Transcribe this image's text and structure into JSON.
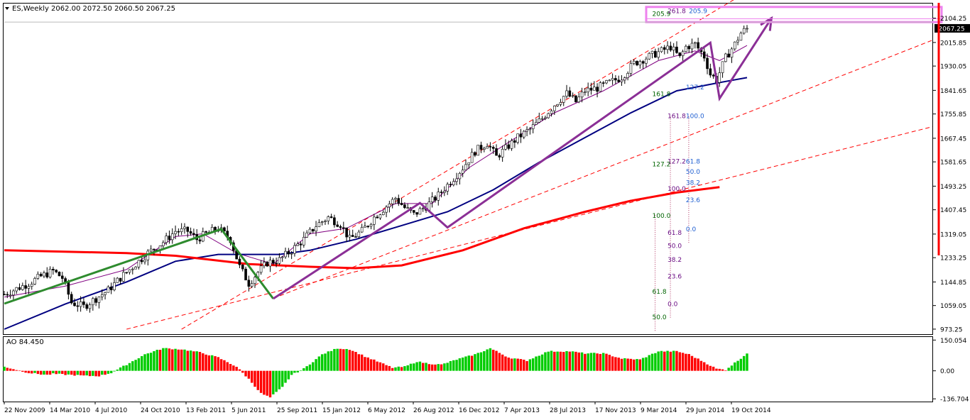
{
  "header": {
    "symbol": "ES,Weekly",
    "ohlc": "2062.00 2072.50 2060.50 2067.25"
  },
  "colors": {
    "background": "#ffffff",
    "grid_line": "#c8c8c8",
    "candle": "#000000",
    "ma_fast": "#800080",
    "ma_mid": "#000080",
    "ma_slow": "#ff0000",
    "trendline": "#ff0000",
    "wave_green": "#2e8b2e",
    "wave_purple": "#8b2f96",
    "target_box": "#ee82ee",
    "fib_green": "#006400",
    "fib_purple": "#6a0d83",
    "fib_blue": "#1f5fd1",
    "ao_up": "#00cc00",
    "ao_down": "#ff0000",
    "price_tag_bg": "#000000",
    "price_tag_text": "#ffffff"
  },
  "chart_data": [
    {
      "type": "candlestick",
      "title": "ES,Weekly",
      "current_price": 2067.25,
      "ylim": [
        955,
        2160
      ],
      "y_ticks": [
        "2104.25",
        "2015.85",
        "1930.05",
        "1841.65",
        "1755.85",
        "1667.45",
        "1581.65",
        "1493.25",
        "1407.45",
        "1319.05",
        "1233.25",
        "1144.85",
        "1059.05",
        "973.25"
      ],
      "y_tick_values": [
        2104.25,
        2015.85,
        1930.05,
        1841.65,
        1755.85,
        1667.45,
        1581.65,
        1493.25,
        1407.45,
        1319.05,
        1233.25,
        1144.85,
        1059.05,
        973.25
      ],
      "x_ticks": [
        "22 Nov 2009",
        "14 Mar 2010",
        "4 Jul 2010",
        "24 Oct 2010",
        "13 Feb 2011",
        "5 Jun 2011",
        "25 Sep 2011",
        "15 Jan 2012",
        "6 May 2012",
        "26 Aug 2012",
        "16 Dec 2012",
        "7 Apr 2013",
        "28 Jul 2013",
        "17 Nov 2013",
        "9 Mar 2014",
        "29 Jun 2014",
        "19 Oct 2014"
      ],
      "price_path": [
        [
          0,
          1100
        ],
        [
          3,
          1115
        ],
        [
          8,
          1140
        ],
        [
          12,
          1165
        ],
        [
          16,
          1185
        ],
        [
          19,
          1160
        ],
        [
          22,
          1070
        ],
        [
          26,
          1055
        ],
        [
          30,
          1085
        ],
        [
          34,
          1115
        ],
        [
          38,
          1160
        ],
        [
          42,
          1200
        ],
        [
          47,
          1250
        ],
        [
          52,
          1290
        ],
        [
          56,
          1330
        ],
        [
          60,
          1330
        ],
        [
          63,
          1300
        ],
        [
          66,
          1320
        ],
        [
          70,
          1340
        ],
        [
          74,
          1300
        ],
        [
          77,
          1200
        ],
        [
          80,
          1140
        ],
        [
          83,
          1180
        ],
        [
          86,
          1215
        ],
        [
          90,
          1225
        ],
        [
          94,
          1260
        ],
        [
          98,
          1300
        ],
        [
          102,
          1350
        ],
        [
          106,
          1380
        ],
        [
          110,
          1355
        ],
        [
          113,
          1300
        ],
        [
          117,
          1330
        ],
        [
          121,
          1380
        ],
        [
          125,
          1420
        ],
        [
          128,
          1450
        ],
        [
          131,
          1415
        ],
        [
          134,
          1390
        ],
        [
          138,
          1420
        ],
        [
          142,
          1460
        ],
        [
          146,
          1510
        ],
        [
          150,
          1560
        ],
        [
          154,
          1620
        ],
        [
          158,
          1650
        ],
        [
          161,
          1600
        ],
        [
          164,
          1630
        ],
        [
          168,
          1670
        ],
        [
          172,
          1700
        ],
        [
          176,
          1740
        ],
        [
          180,
          1790
        ],
        [
          184,
          1830
        ],
        [
          187,
          1800
        ],
        [
          190,
          1840
        ],
        [
          194,
          1850
        ],
        [
          198,
          1870
        ],
        [
          202,
          1890
        ],
        [
          206,
          1940
        ],
        [
          210,
          1960
        ],
        [
          214,
          1980
        ],
        [
          218,
          2000
        ],
        [
          221,
          1960
        ],
        [
          223,
          2000
        ],
        [
          226,
          2010
        ],
        [
          229,
          1965
        ],
        [
          231,
          1900
        ],
        [
          233,
          1880
        ],
        [
          236,
          1960
        ],
        [
          239,
          2010
        ],
        [
          241,
          2050
        ],
        [
          243,
          2067.25
        ]
      ],
      "series": [
        {
          "name": "",
          "kind": "ma_fast",
          "values": [
            [
              0,
              1090
            ],
            [
              20,
              1130
            ],
            [
              40,
              1190
            ],
            [
              56,
              1310
            ],
            [
              65,
              1320
            ],
            [
              76,
              1250
            ],
            [
              88,
              1210
            ],
            [
              100,
              1320
            ],
            [
              112,
              1340
            ],
            [
              128,
              1430
            ],
            [
              140,
              1430
            ],
            [
              152,
              1560
            ],
            [
              166,
              1660
            ],
            [
              180,
              1760
            ],
            [
              196,
              1840
            ],
            [
              214,
              1950
            ],
            [
              226,
              1985
            ],
            [
              234,
              1950
            ],
            [
              243,
              2005
            ]
          ]
        },
        {
          "name": "",
          "kind": "ma_mid",
          "values": [
            [
              0,
              973
            ],
            [
              20,
              1065
            ],
            [
              40,
              1145
            ],
            [
              56,
              1220
            ],
            [
              70,
              1245
            ],
            [
              90,
              1245
            ],
            [
              100,
              1260
            ],
            [
              115,
              1300
            ],
            [
              130,
              1350
            ],
            [
              145,
              1400
            ],
            [
              160,
              1480
            ],
            [
              175,
              1580
            ],
            [
              190,
              1670
            ],
            [
              205,
              1760
            ],
            [
              220,
              1840
            ],
            [
              234,
              1870
            ],
            [
              243,
              1888
            ]
          ]
        },
        {
          "name": "",
          "kind": "ma_slow",
          "values": [
            [
              0,
              1260
            ],
            [
              40,
              1250
            ],
            [
              56,
              1240
            ],
            [
              80,
              1210
            ],
            [
              100,
              1200
            ],
            [
              115,
              1195
            ],
            [
              130,
              1205
            ],
            [
              150,
              1260
            ],
            [
              170,
              1340
            ],
            [
              190,
              1400
            ],
            [
              205,
              1440
            ],
            [
              220,
              1470
            ],
            [
              234,
              1490
            ]
          ]
        }
      ],
      "trendlines": [
        [
          [
            58,
            973
          ],
          [
            243,
            2200
          ]
        ],
        [
          [
            88,
            1085
          ],
          [
            243,
            1760
          ]
        ],
        [
          [
            40,
            973
          ],
          [
            243,
            1540
          ]
        ]
      ],
      "wave_lines": {
        "green": [
          [
            0,
            1066
          ],
          [
            71,
            1337
          ],
          [
            88,
            1084
          ]
        ],
        "purple": [
          [
            88,
            1084
          ],
          [
            136,
            1432
          ],
          [
            145,
            1343
          ],
          [
            231,
            2015
          ],
          [
            234,
            1812
          ],
          [
            251,
            2104
          ]
        ]
      },
      "target_box": {
        "low": 2090,
        "high": 2145
      },
      "fib_labels": [
        {
          "text": "205.9",
          "color": "fib_green",
          "x": 212,
          "price": 2122
        },
        {
          "text": "261.8",
          "color": "fib_purple",
          "x": 217,
          "price": 2133
        },
        {
          "text": "205.9",
          "color": "fib_blue",
          "x": 224,
          "price": 2133
        },
        {
          "text": "161.8",
          "color": "fib_green",
          "x": 212,
          "price": 1831
        },
        {
          "text": "127.2",
          "color": "fib_blue",
          "x": 223,
          "price": 1856
        },
        {
          "text": "161.8",
          "color": "fib_purple",
          "x": 217,
          "price": 1751
        },
        {
          "text": "100.0",
          "color": "fib_blue",
          "x": 223,
          "price": 1751
        },
        {
          "text": "127.2",
          "color": "fib_purple",
          "x": 217,
          "price": 1586
        },
        {
          "text": "127.2",
          "color": "fib_green",
          "x": 212,
          "price": 1576
        },
        {
          "text": "61.8",
          "color": "fib_blue",
          "x": 223,
          "price": 1586
        },
        {
          "text": "50.0",
          "color": "fib_blue",
          "x": 223,
          "price": 1548
        },
        {
          "text": "100.0",
          "color": "fib_purple",
          "x": 217,
          "price": 1487
        },
        {
          "text": "38.2",
          "color": "fib_blue",
          "x": 223,
          "price": 1508
        },
        {
          "text": "23.6",
          "color": "fib_blue",
          "x": 223,
          "price": 1445
        },
        {
          "text": "100.0",
          "color": "fib_green",
          "x": 212,
          "price": 1388
        },
        {
          "text": "0.0",
          "color": "fib_blue",
          "x": 223,
          "price": 1339
        },
        {
          "text": "61.8",
          "color": "fib_purple",
          "x": 217,
          "price": 1327
        },
        {
          "text": "50.0",
          "color": "fib_purple",
          "x": 217,
          "price": 1279
        },
        {
          "text": "38.2",
          "color": "fib_purple",
          "x": 217,
          "price": 1229
        },
        {
          "text": "23.6",
          "color": "fib_purple",
          "x": 217,
          "price": 1168
        },
        {
          "text": "61.8",
          "color": "fib_green",
          "x": 212,
          "price": 1113
        },
        {
          "text": "0.0",
          "color": "fib_purple",
          "x": 217,
          "price": 1067
        },
        {
          "text": "50.0",
          "color": "fib_green",
          "x": 212,
          "price": 1019
        }
      ],
      "legend": "none",
      "grid": false
    },
    {
      "type": "bar",
      "title": "AO 84.450",
      "ylim": [
        -150,
        165
      ],
      "y_ticks": [
        "150.054",
        "0.00",
        "-136.704"
      ],
      "y_tick_values": [
        150.054,
        0,
        -136.704
      ],
      "ao_keypoints": [
        [
          0,
          20
        ],
        [
          8,
          -10
        ],
        [
          14,
          -20
        ],
        [
          16,
          -15
        ],
        [
          22,
          -20
        ],
        [
          27,
          -25
        ],
        [
          31,
          -25
        ],
        [
          35,
          -10
        ],
        [
          40,
          30
        ],
        [
          46,
          80
        ],
        [
          52,
          110
        ],
        [
          58,
          105
        ],
        [
          64,
          90
        ],
        [
          70,
          65
        ],
        [
          76,
          20
        ],
        [
          80,
          -40
        ],
        [
          84,
          -110
        ],
        [
          87,
          -130
        ],
        [
          91,
          -80
        ],
        [
          94,
          -20
        ],
        [
          98,
          10
        ],
        [
          104,
          80
        ],
        [
          109,
          110
        ],
        [
          113,
          105
        ],
        [
          118,
          70
        ],
        [
          123,
          40
        ],
        [
          127,
          15
        ],
        [
          131,
          20
        ],
        [
          135,
          45
        ],
        [
          139,
          35
        ],
        [
          143,
          30
        ],
        [
          148,
          55
        ],
        [
          154,
          80
        ],
        [
          159,
          110
        ],
        [
          165,
          65
        ],
        [
          171,
          50
        ],
        [
          178,
          95
        ],
        [
          185,
          95
        ],
        [
          190,
          85
        ],
        [
          196,
          85
        ],
        [
          202,
          60
        ],
        [
          208,
          55
        ],
        [
          214,
          95
        ],
        [
          220,
          95
        ],
        [
          224,
          80
        ],
        [
          228,
          50
        ],
        [
          233,
          10
        ],
        [
          236,
          5
        ],
        [
          240,
          50
        ],
        [
          243,
          84.45
        ]
      ]
    }
  ]
}
